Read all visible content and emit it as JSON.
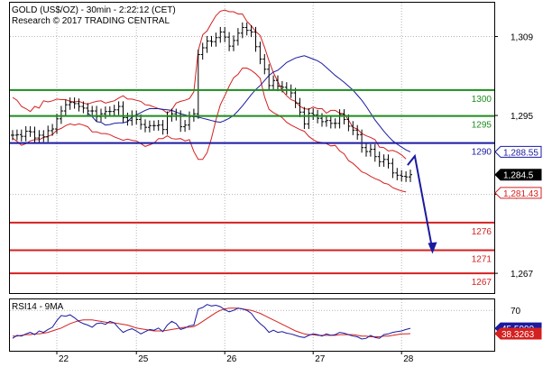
{
  "header": {
    "title": "GOLD (US$/OZ) - 30min - 2:22:12 (CET)",
    "subtitle": "Research © 2017 TRADING CENTRAL"
  },
  "chart_data": {
    "type": "line",
    "price_axis": {
      "ylim": [
        1263.5,
        1315
      ],
      "tick_values": [
        1309,
        1295,
        1281,
        1267
      ],
      "tick_labels": [
        "1,309",
        "1,295",
        "1,281",
        "1,267"
      ]
    },
    "x_axis": {
      "tick_labels": [
        "22",
        "25",
        "26",
        "27",
        "28"
      ],
      "tick_index": [
        10,
        28,
        48,
        68,
        88
      ]
    },
    "current_price": {
      "value": 1284.5,
      "label": "1,284.5",
      "color": "#000000"
    },
    "ma_value": {
      "value": 1288.55,
      "label": "1,288.55",
      "color": "#1a1aa0"
    },
    "lower_band_value": {
      "value": 1281.43,
      "label": "1,281.43",
      "color": "#d42020"
    },
    "levels": [
      {
        "name": "1300",
        "value": 1299.5,
        "color": "#1e8c1e",
        "text_color": "#1e8c1e"
      },
      {
        "name": "1295",
        "value": 1294.9,
        "color": "#1e8c1e",
        "text_color": "#1e8c1e"
      },
      {
        "name": "1290",
        "value": 1290.1,
        "color": "#1a1aa0",
        "text_color": "#1a1aa0"
      },
      {
        "name": "1276",
        "value": 1276.0,
        "color": "#d42020",
        "text_color": "#d42020"
      },
      {
        "name": "1271",
        "value": 1271.1,
        "color": "#d42020",
        "text_color": "#d42020"
      },
      {
        "name": "1267",
        "value": 1267.0,
        "color": "#d42020",
        "text_color": "#d42020"
      }
    ],
    "price_series": [
      1291.5,
      1291.6,
      1291.3,
      1292.2,
      1292.1,
      1291.0,
      1291.5,
      1291.2,
      1292.3,
      1292.6,
      1294.4,
      1295.8,
      1296.9,
      1297.3,
      1297.1,
      1296.6,
      1296.3,
      1295.8,
      1295.8,
      1294.8,
      1295.3,
      1295.7,
      1295.7,
      1296.0,
      1296.6,
      1294.6,
      1294.1,
      1295.0,
      1294.3,
      1293.4,
      1292.9,
      1293.2,
      1293.2,
      1293.3,
      1292.5,
      1294.8,
      1295.3,
      1295.0,
      1293.0,
      1293.3,
      1294.8,
      1295.3,
      1305.8,
      1307.0,
      1308.2,
      1308.1,
      1308.8,
      1309.8,
      1308.9,
      1307.3,
      1308.3,
      1309.6,
      1310.6,
      1310.1,
      1309.8,
      1307.2,
      1305.0,
      1303.2,
      1300.3,
      1301.2,
      1300.2,
      1300.0,
      1299.6,
      1299.0,
      1297.2,
      1295.6,
      1293.5,
      1295.4,
      1295.1,
      1294.5,
      1293.9,
      1294.1,
      1293.6,
      1293.6,
      1295.2,
      1294.3,
      1293.1,
      1292.4,
      1291.6,
      1289.3,
      1288.6,
      1289.0,
      1287.7,
      1286.8,
      1287.2,
      1286.5,
      1284.8,
      1284.4,
      1284.2,
      1284.1,
      1284.5
    ],
    "ma_series": [
      1295.4,
      1294.8,
      1293.9,
      1293.8,
      1293.3,
      1293.4,
      1293.6,
      1293.7,
      1293.7,
      1293.9,
      1294.7,
      1295.1,
      1295.5,
      1295.9,
      1296.2,
      1296.2,
      1296.2,
      1296.1,
      1296.0,
      1295.9,
      1295.6,
      1295.3,
      1295.1,
      1294.9,
      1294.8,
      1294.7,
      1294.5,
      1294.3,
      1294.1,
      1293.9,
      1293.8,
      1294.1,
      1294.5,
      1295.0,
      1295.8,
      1296.7,
      1297.7,
      1298.7,
      1299.6,
      1300.3,
      1301.2,
      1302.1,
      1302.7,
      1303.0,
      1303.7,
      1304.4,
      1304.8,
      1305.2,
      1305.4,
      1305.6,
      1305.3,
      1305.0,
      1304.7,
      1304.2,
      1303.5,
      1302.8,
      1302.1,
      1301.5,
      1300.9,
      1300.2,
      1299.5,
      1298.6,
      1297.7,
      1296.6,
      1295.4,
      1294.2,
      1293.2,
      1292.2,
      1291.3,
      1290.5,
      1289.9,
      1289.4,
      1288.9,
      1288.55
    ],
    "ma_start_index": 17,
    "upper_band": [
      1298.2,
      1297.7,
      1296.6,
      1296.2,
      1295.7,
      1296.6,
      1296.3,
      1297.6,
      1297.4,
      1297.6,
      1297.9,
      1297.8,
      1297.8,
      1297.5,
      1297.4,
      1297.5,
      1297.2,
      1297.0,
      1297.3,
      1297.5,
      1297.6,
      1297.2,
      1297.4,
      1297.6,
      1298.1,
      1298.5,
      1297.9,
      1297.9,
      1297.7,
      1297.5,
      1296.9,
      1296.8,
      1296.5,
      1296.2,
      1296.0,
      1295.4,
      1296.0,
      1297.2,
      1297.5,
      1297.7,
      1298.0,
      1299.2,
      1306.5,
      1309.3,
      1310.0,
      1311.4,
      1312.7,
      1313.5,
      1313.7,
      1313.4,
      1313.4,
      1313.0,
      1313.0,
      1311.7,
      1310.9,
      1309.9,
      1309.2,
      1307.1,
      1304.7,
      1302.6,
      1301.0,
      1299.4,
      1298.5,
      1297.8,
      1297.5,
      1296.6,
      1296.2,
      1296.1,
      1296.5,
      1296.2,
      1296.2,
      1295.4,
      1295.9,
      1295.9,
      1295.4,
      1295.3,
      1294.2,
      1292.9,
      1292.6,
      1291.8,
      1291.4,
      1291.1,
      1290.7,
      1289.4,
      1289.3,
      1288.7,
      1288.8,
      1288.5,
      1288.0,
      1287.3
    ],
    "lower_band": [
      1291.0,
      1290.4,
      1289.7,
      1290.0,
      1290.5,
      1290.7,
      1290.7,
      1291.1,
      1291.3,
      1291.6,
      1292.4,
      1292.7,
      1293.2,
      1293.5,
      1293.3,
      1293.5,
      1293.3,
      1293.0,
      1292.1,
      1292.1,
      1291.8,
      1291.8,
      1291.6,
      1291.2,
      1290.9,
      1290.6,
      1290.8,
      1290.6,
      1290.5,
      1290.0,
      1289.5,
      1289.8,
      1290.1,
      1290.9,
      1290.9,
      1291.4,
      1290.9,
      1290.8,
      1290.9,
      1290.5,
      1290.7,
      1288.6,
      1287.2,
      1287.2,
      1288.4,
      1291.0,
      1294.2,
      1296.9,
      1298.5,
      1300.2,
      1301.7,
      1302.3,
      1303.4,
      1303.4,
      1303.0,
      1302.4,
      1301.6,
      1298.3,
      1296.1,
      1295.5,
      1295.1,
      1294.6,
      1293.8,
      1293.3,
      1292.9,
      1292.5,
      1292.2,
      1291.3,
      1290.7,
      1290.3,
      1290.2,
      1290.0,
      1289.6,
      1289.7,
      1288.7,
      1288.2,
      1287.0,
      1286.5,
      1285.8,
      1285.0,
      1284.7,
      1284.2,
      1283.8,
      1283.5,
      1283.0,
      1282.8,
      1282.2,
      1281.9,
      1281.6,
      1281.43
    ],
    "forecast_arrow": {
      "from_index": 91,
      "from_value": 1287.8,
      "to_index": 95,
      "to_value": 1271.1,
      "color": "#1a1aa0"
    },
    "rsi_panel": {
      "title": "RSI14 - 9MA",
      "ylim": [
        15,
        85
      ],
      "tick_values": [
        70
      ],
      "tick_labels": [
        "70"
      ],
      "rsi_value": {
        "value": 45.5999,
        "label": "45.5999",
        "color": "#1a1aa0"
      },
      "ma_value": {
        "value": 38.3263,
        "label": "38.3263",
        "color": "#d42020"
      },
      "rsi_series": [
        32,
        36,
        35,
        38,
        40,
        37,
        42,
        40,
        44,
        47,
        56,
        63,
        62,
        64,
        60,
        55,
        52,
        50,
        47,
        52,
        53,
        51,
        55,
        53,
        46,
        40,
        43,
        45,
        42,
        38,
        41,
        44,
        43,
        46,
        41,
        50,
        55,
        52,
        44,
        46,
        49,
        50,
        72,
        74,
        78,
        76,
        77,
        75,
        71,
        68,
        70,
        73,
        72,
        70,
        66,
        58,
        52,
        47,
        40,
        43,
        40,
        41,
        39,
        38,
        36,
        34,
        33,
        36,
        38,
        37,
        35,
        38,
        36,
        37,
        40,
        39,
        37,
        35,
        34,
        31,
        32,
        36,
        33,
        32,
        37,
        38,
        40,
        41,
        42,
        44,
        45.6
      ],
      "ma_series": [
        35,
        35,
        36,
        37,
        37,
        38,
        38,
        39,
        40,
        42,
        44,
        46,
        49,
        52,
        54,
        56,
        57,
        57,
        57,
        56,
        55,
        54,
        53,
        53,
        52,
        51,
        50,
        48,
        46,
        45,
        44,
        43,
        42,
        42,
        42,
        43,
        44,
        45,
        46,
        47,
        47,
        48,
        51,
        55,
        59,
        63,
        67,
        70,
        72,
        73,
        73,
        73,
        72,
        71,
        70,
        68,
        66,
        63,
        60,
        57,
        54,
        51,
        48,
        45,
        42,
        40,
        38,
        37,
        37,
        36,
        36,
        36,
        36,
        36,
        37,
        37,
        37,
        37,
        36,
        35,
        35,
        34,
        34,
        34,
        35,
        35,
        36,
        37,
        38,
        38,
        38.3
      ]
    }
  }
}
